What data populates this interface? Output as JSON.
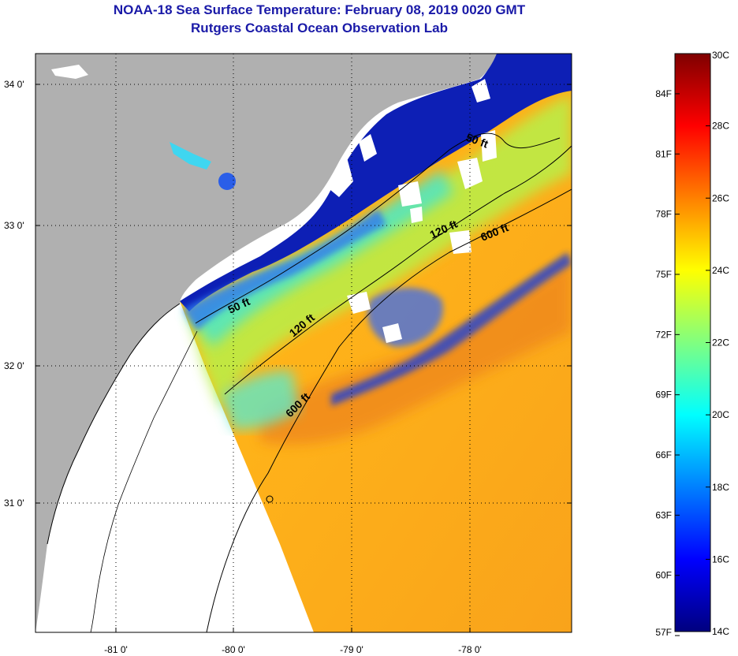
{
  "title": {
    "line1": "NOAA-18 Sea Surface Temperature:  February 08, 2019 0020 GMT",
    "line2": "Rutgers Coastal Ocean Observation Lab"
  },
  "map": {
    "lat_ticks": [
      "34 0'",
      "33 0'",
      "32 0'",
      "31 0'"
    ],
    "lon_ticks": [
      "-81 0'",
      "-80 0'",
      "-79 0'",
      "-78 0'"
    ],
    "contours": [
      {
        "label": "50 ft",
        "id": "c50a"
      },
      {
        "label": "50 ft",
        "id": "c50b"
      },
      {
        "label": "120 ft",
        "id": "c120a"
      },
      {
        "label": "120 ft",
        "id": "c120b"
      },
      {
        "label": "600 ft",
        "id": "c600a"
      },
      {
        "label": "600 ft",
        "id": "c600b"
      }
    ]
  },
  "colorbar": {
    "fahrenheit": [
      "57F",
      "60F",
      "63F",
      "66F",
      "69F",
      "72F",
      "75F",
      "78F",
      "81F",
      "84F"
    ],
    "celsius": [
      "14C",
      "16C",
      "18C",
      "20C",
      "22C",
      "24C",
      "26C",
      "28C",
      "30C"
    ],
    "colors": [
      "#00007f",
      "#0000ff",
      "#0080ff",
      "#00ffff",
      "#80ff80",
      "#ffff00",
      "#ff8000",
      "#ff0000",
      "#7f0000"
    ]
  },
  "colors": {
    "land": "#b0b0b0",
    "cloud": "#ffffff",
    "cold_water": "#0a1ab8",
    "warm_water": "#f29a1e"
  }
}
